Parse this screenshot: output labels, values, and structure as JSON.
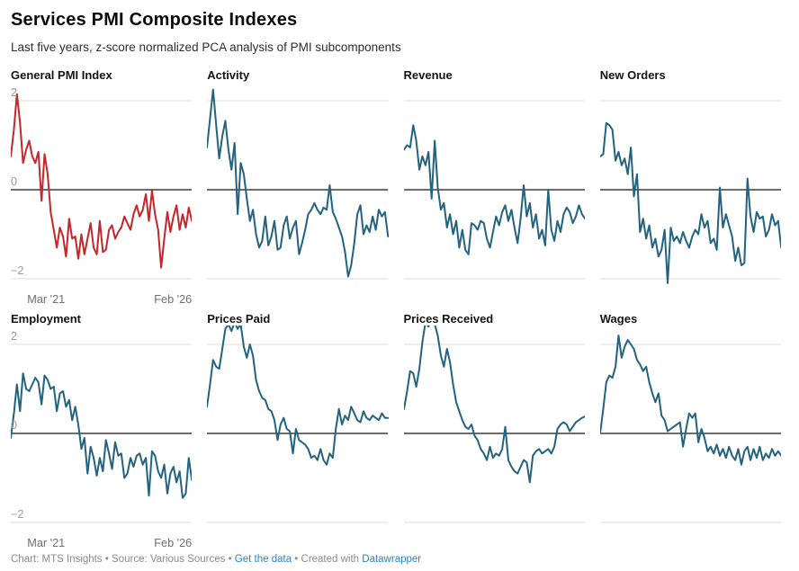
{
  "header": {
    "title": "Services PMI Composite Indexes",
    "subtitle": "Last five years, z-score normalized PCA analysis of PMI subcomponents"
  },
  "chart_data": {
    "type": "line",
    "layout": "small-multiples-4x2",
    "x_start": "Mar '21",
    "x_end": "Feb '26",
    "n_points": 60,
    "x_unit": "month",
    "yticks": [
      2,
      0,
      -2
    ],
    "ylim": [
      -2.25,
      2.46
    ],
    "grid": "horizontal",
    "zero_line": true,
    "panels": [
      {
        "title": "General PMI Index",
        "color": "#c4282c",
        "axes": true,
        "values": [
          0.75,
          1.35,
          2.15,
          1.5,
          0.6,
          0.9,
          1.1,
          0.75,
          0.6,
          0.85,
          -0.25,
          0.8,
          0.35,
          -0.5,
          -0.9,
          -1.3,
          -0.85,
          -1.05,
          -1.5,
          -0.65,
          -1.1,
          -1.05,
          -1.55,
          -1.0,
          -1.45,
          -1.1,
          -0.75,
          -1.3,
          -1.45,
          -0.7,
          -1.4,
          -1.35,
          -0.9,
          -0.8,
          -1.1,
          -0.95,
          -0.85,
          -0.6,
          -0.75,
          -0.9,
          -0.55,
          -0.35,
          -0.6,
          -0.45,
          -0.1,
          -0.7,
          -0.02,
          -0.55,
          -0.9,
          -1.75,
          -1.1,
          -0.5,
          -0.95,
          -0.6,
          -0.35,
          -0.9,
          -0.55,
          -0.85,
          -0.4,
          -0.7
        ]
      },
      {
        "title": "Activity",
        "color": "#256480",
        "axes": false,
        "values": [
          0.95,
          1.6,
          2.25,
          1.45,
          0.7,
          1.2,
          1.55,
          0.9,
          0.45,
          1.05,
          -0.55,
          0.6,
          0.35,
          -0.2,
          -0.7,
          -0.45,
          -1.0,
          -1.3,
          -1.15,
          -0.6,
          -1.25,
          -1.05,
          -0.7,
          -1.35,
          -1.3,
          -0.8,
          -0.6,
          -1.1,
          -0.85,
          -0.7,
          -1.45,
          -1.2,
          -0.9,
          -0.55,
          -0.45,
          -0.3,
          -0.45,
          -0.55,
          -0.4,
          -0.45,
          0.1,
          -0.5,
          -0.65,
          -0.85,
          -1.05,
          -1.4,
          -1.95,
          -1.7,
          -1.2,
          -0.55,
          -0.35,
          -1.0,
          -0.8,
          -0.95,
          -0.6,
          -0.9,
          -0.45,
          -0.6,
          -0.5,
          -1.05
        ]
      },
      {
        "title": "Revenue",
        "color": "#256480",
        "axes": false,
        "values": [
          0.9,
          1.0,
          0.95,
          1.45,
          1.1,
          0.45,
          0.75,
          0.55,
          0.85,
          -0.2,
          1.1,
          0.05,
          -0.45,
          -0.3,
          -0.85,
          -0.55,
          -1.0,
          -0.7,
          -1.3,
          -0.9,
          -1.35,
          -1.45,
          -0.75,
          -0.8,
          -0.9,
          -0.7,
          -0.75,
          -1.1,
          -1.3,
          -0.95,
          -0.6,
          -0.8,
          -0.5,
          -0.35,
          -0.7,
          -0.45,
          -0.85,
          -1.2,
          -0.65,
          0.1,
          -0.6,
          -0.3,
          -0.85,
          -0.55,
          -1.1,
          -0.9,
          -1.25,
          0.0,
          -0.9,
          -1.15,
          -0.7,
          -0.95,
          -0.55,
          -0.4,
          -0.5,
          -0.75,
          -0.6,
          -0.35,
          -0.55,
          -0.65
        ]
      },
      {
        "title": "New Orders",
        "color": "#256480",
        "axes": false,
        "values": [
          0.75,
          0.8,
          1.5,
          1.45,
          1.35,
          0.65,
          0.85,
          0.55,
          0.7,
          0.35,
          0.95,
          -0.15,
          0.35,
          -0.95,
          -0.65,
          -1.1,
          -0.8,
          -1.3,
          -1.1,
          -1.5,
          -1.35,
          -0.9,
          -2.1,
          -0.85,
          -1.15,
          -1.05,
          -1.2,
          -0.95,
          -1.15,
          -1.3,
          -1.05,
          -0.9,
          -1.0,
          -0.55,
          -0.85,
          -0.7,
          -1.2,
          -1.1,
          -1.35,
          0.05,
          -0.85,
          -0.55,
          -0.8,
          -1.05,
          -1.6,
          -1.3,
          -1.7,
          -1.65,
          0.25,
          -0.6,
          -0.95,
          -0.5,
          -0.65,
          -0.6,
          -1.05,
          -0.9,
          -0.55,
          -0.8,
          -0.7,
          -1.3
        ]
      },
      {
        "title": "Employment",
        "color": "#256480",
        "axes": true,
        "values": [
          -0.1,
          0.45,
          1.1,
          0.5,
          1.35,
          1.0,
          0.95,
          1.1,
          1.25,
          1.15,
          0.65,
          1.3,
          1.2,
          1.0,
          1.05,
          0.5,
          0.9,
          0.95,
          0.6,
          0.75,
          0.3,
          0.6,
          0.2,
          -0.35,
          -0.1,
          -0.9,
          -0.3,
          -0.55,
          -0.95,
          -0.55,
          -0.85,
          -0.15,
          -0.45,
          -0.8,
          -0.2,
          -0.5,
          -0.45,
          -1.0,
          -0.9,
          -0.55,
          -0.75,
          -0.5,
          -0.45,
          -0.7,
          -0.55,
          -1.4,
          -0.4,
          -0.5,
          -0.85,
          -1.0,
          -0.7,
          -1.35,
          -0.9,
          -0.75,
          -1.1,
          -0.85,
          -1.45,
          -1.35,
          -0.55,
          -1.05
        ]
      },
      {
        "title": "Prices Paid",
        "color": "#256480",
        "axes": false,
        "values": [
          0.6,
          1.1,
          1.65,
          1.5,
          1.45,
          1.9,
          2.35,
          2.45,
          2.3,
          2.5,
          2.35,
          2.45,
          1.95,
          1.7,
          2.0,
          1.75,
          1.2,
          0.95,
          0.8,
          0.75,
          0.55,
          0.5,
          0.3,
          -0.15,
          0.2,
          0.35,
          0.1,
          0.05,
          -0.45,
          0.1,
          -0.15,
          -0.2,
          -0.25,
          -0.35,
          -0.55,
          -0.5,
          -0.6,
          -0.35,
          -0.6,
          -0.7,
          -0.45,
          -0.55,
          0.1,
          0.55,
          0.2,
          0.4,
          0.3,
          0.6,
          0.45,
          0.3,
          0.25,
          0.5,
          0.35,
          0.3,
          0.4,
          0.35,
          0.3,
          0.45,
          0.35,
          0.35
        ]
      },
      {
        "title": "Prices Received",
        "color": "#256480",
        "axes": false,
        "values": [
          0.55,
          0.95,
          1.4,
          1.35,
          1.05,
          1.45,
          2.05,
          2.5,
          2.4,
          2.55,
          2.45,
          2.2,
          1.75,
          1.5,
          1.9,
          1.6,
          1.1,
          0.7,
          0.5,
          0.3,
          0.15,
          0.1,
          0.2,
          -0.05,
          -0.15,
          -0.35,
          -0.45,
          -0.6,
          -0.3,
          -0.55,
          -0.45,
          -0.5,
          -0.35,
          0.15,
          -0.6,
          -0.75,
          -0.85,
          -0.9,
          -0.75,
          -0.6,
          -0.65,
          -1.1,
          -0.5,
          -0.4,
          -0.35,
          -0.45,
          -0.4,
          -0.35,
          -0.45,
          -0.3,
          0.1,
          0.2,
          0.25,
          0.2,
          0.05,
          0.15,
          0.25,
          0.3,
          0.35,
          0.38
        ]
      },
      {
        "title": "Wages",
        "color": "#256480",
        "axes": false,
        "values": [
          0.0,
          0.55,
          1.15,
          1.3,
          1.25,
          1.5,
          2.2,
          1.7,
          1.95,
          2.1,
          2.0,
          1.9,
          1.65,
          1.55,
          1.4,
          1.5,
          1.15,
          0.9,
          0.7,
          0.9,
          0.4,
          0.3,
          0.05,
          0.1,
          0.15,
          0.2,
          0.25,
          -0.3,
          0.1,
          0.45,
          0.35,
          0.45,
          -0.2,
          0.1,
          -0.1,
          -0.4,
          -0.3,
          -0.45,
          -0.25,
          -0.5,
          -0.35,
          -0.55,
          -0.3,
          -0.5,
          -0.6,
          -0.35,
          -0.7,
          -0.4,
          -0.3,
          -0.6,
          -0.35,
          -0.55,
          -0.3,
          -0.6,
          -0.45,
          -0.55,
          -0.35,
          -0.5,
          -0.4,
          -0.5
        ]
      }
    ]
  },
  "axis_labels": {
    "y_top": "2",
    "y_zero": "0",
    "y_bottom": "−2",
    "x_left": "Mar '21",
    "x_right": "Feb '26"
  },
  "footer": {
    "credit_text": "Chart: MTS Insights • Source: Various Sources • ",
    "get_data_link": "Get the data",
    "created_with": " • Created with ",
    "tool_link": "Datawrapper"
  },
  "colors": {
    "accent_red": "#c4282c",
    "accent_teal": "#256480",
    "grid_line": "#dcdcdc",
    "zero_line": "#141414",
    "y_tick_label": "#9b9b9b",
    "x_tick_label": "#6f6f6f",
    "footer_text": "#8b8b8b",
    "link": "#2a83c8"
  }
}
